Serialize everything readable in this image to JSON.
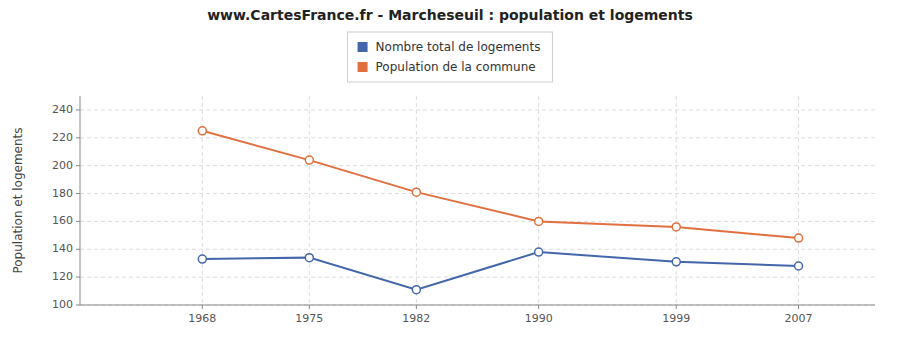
{
  "chart_data": {
    "type": "line",
    "title": "www.CartesFrance.fr - Marcheseuil : population et logements",
    "y_label": "Population et logements",
    "x": [
      1968,
      1975,
      1982,
      1990,
      1999,
      2007
    ],
    "series": [
      {
        "name": "Nombre total de logements",
        "color": "#4466aa",
        "marker": "circle",
        "values": [
          133,
          134,
          111,
          138,
          131,
          128
        ]
      },
      {
        "name": "Population de la commune",
        "color": "#e07040",
        "marker": "circle",
        "values": [
          225,
          204,
          181,
          160,
          156,
          148
        ]
      }
    ],
    "xlim": [
      1960,
      2012
    ],
    "xticks": [
      1968,
      1975,
      1982,
      1990,
      1999,
      2007
    ],
    "ylim": [
      100,
      250
    ],
    "yticks": [
      100,
      120,
      140,
      160,
      180,
      200,
      220,
      240
    ],
    "grid": true,
    "legend": "top"
  }
}
